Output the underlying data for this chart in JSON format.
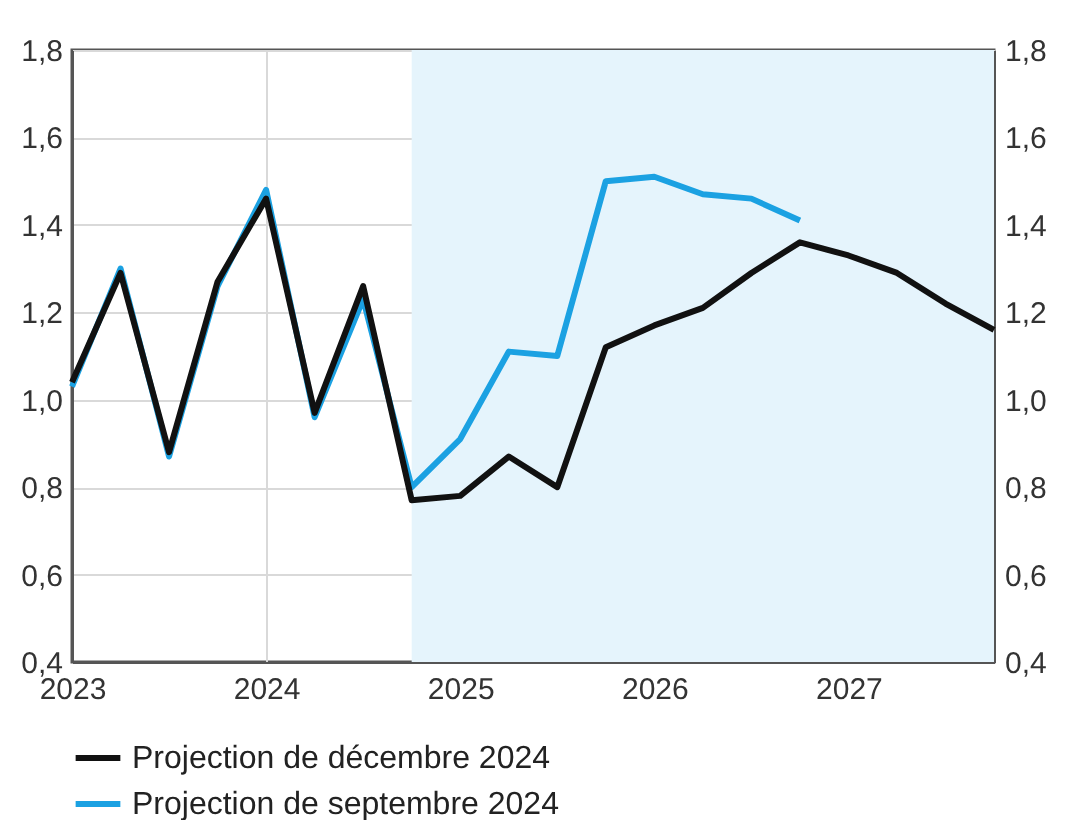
{
  "chart_data": {
    "type": "line",
    "x": [
      2023,
      2023.25,
      2023.5,
      2023.75,
      2024,
      2024.25,
      2024.5,
      2024.75,
      2025,
      2025.25,
      2025.5,
      2025.75,
      2026,
      2026.25,
      2026.5,
      2026.75,
      2027,
      2027.25,
      2027.5,
      2027.75
    ],
    "series": [
      {
        "name": "Projection de décembre 2024",
        "color": "#111111",
        "values": [
          1.04,
          1.29,
          0.88,
          1.27,
          1.46,
          0.97,
          1.26,
          0.77,
          0.78,
          0.87,
          0.8,
          1.12,
          1.17,
          1.21,
          1.29,
          1.36,
          1.33,
          1.29,
          1.22,
          1.16
        ]
      },
      {
        "name": "Projection de septembre 2024",
        "color": "#1ba1e2",
        "values": [
          1.03,
          1.3,
          0.87,
          1.26,
          1.48,
          0.96,
          1.23,
          0.8,
          0.91,
          1.11,
          1.1,
          1.5,
          1.51,
          1.47,
          1.46,
          1.41,
          null,
          null,
          null,
          null
        ]
      }
    ],
    "xlim": [
      2023,
      2027.75
    ],
    "xticks": [
      2023,
      2024,
      2025,
      2026,
      2027
    ],
    "ylim": [
      0.4,
      1.8
    ],
    "yticks": [
      {
        "value": 0.4,
        "label": "0,4"
      },
      {
        "value": 0.6,
        "label": "0,6"
      },
      {
        "value": 0.8,
        "label": "0,8"
      },
      {
        "value": 1.0,
        "label": "1,0"
      },
      {
        "value": 1.2,
        "label": "1,2"
      },
      {
        "value": 1.4,
        "label": "1,4"
      },
      {
        "value": 1.6,
        "label": "1,6"
      },
      {
        "value": 1.8,
        "label": "1,8"
      }
    ],
    "y2lim": [
      0.4,
      1.8
    ],
    "y2ticks": [
      {
        "value": 0.4,
        "label": "0,4"
      },
      {
        "value": 0.6,
        "label": "0,6"
      },
      {
        "value": 0.8,
        "label": "0,8"
      },
      {
        "value": 1.0,
        "label": "1,0"
      },
      {
        "value": 1.2,
        "label": "1,2"
      },
      {
        "value": 1.4,
        "label": "1,4"
      },
      {
        "value": 1.6,
        "label": "1,6"
      },
      {
        "value": 1.8,
        "label": "1,8"
      }
    ],
    "bands": [
      {
        "axis": "x",
        "from": 2024.75,
        "to": 2027.75,
        "color": "#e5f4fc"
      }
    ],
    "grid": true,
    "legend": "bottom",
    "line_style": "solid"
  }
}
